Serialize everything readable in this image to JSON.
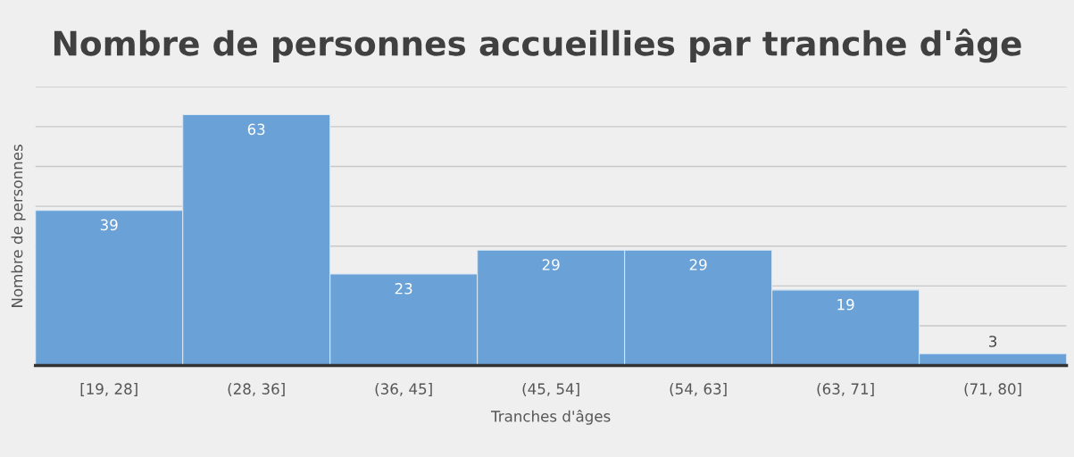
{
  "chart_data": {
    "type": "bar",
    "title": "Nombre de personnes accueillies par tranche d'âge",
    "xlabel": "Tranches d'âges",
    "ylabel": "Nombre de personnes",
    "categories": [
      "[19, 28]",
      "(28, 36]",
      "(36, 45]",
      "(45, 54]",
      "(54, 63]",
      "(63, 71]",
      "(71, 80]"
    ],
    "values": [
      39,
      63,
      23,
      29,
      29,
      19,
      3
    ],
    "color": "#6aa2d8",
    "ylim": [
      0,
      70
    ],
    "yticks": [
      {
        "value": 0,
        "label": null
      },
      {
        "value": 10,
        "label": null
      },
      {
        "value": 20,
        "label": null
      },
      {
        "value": 30,
        "label": null
      },
      {
        "value": 40,
        "label": null
      },
      {
        "value": 50,
        "label": null
      },
      {
        "value": 60,
        "label": null
      },
      {
        "value": 70,
        "label": null
      }
    ],
    "tick_labels": "x",
    "grid": "y",
    "data_labels": true,
    "legend": false
  }
}
